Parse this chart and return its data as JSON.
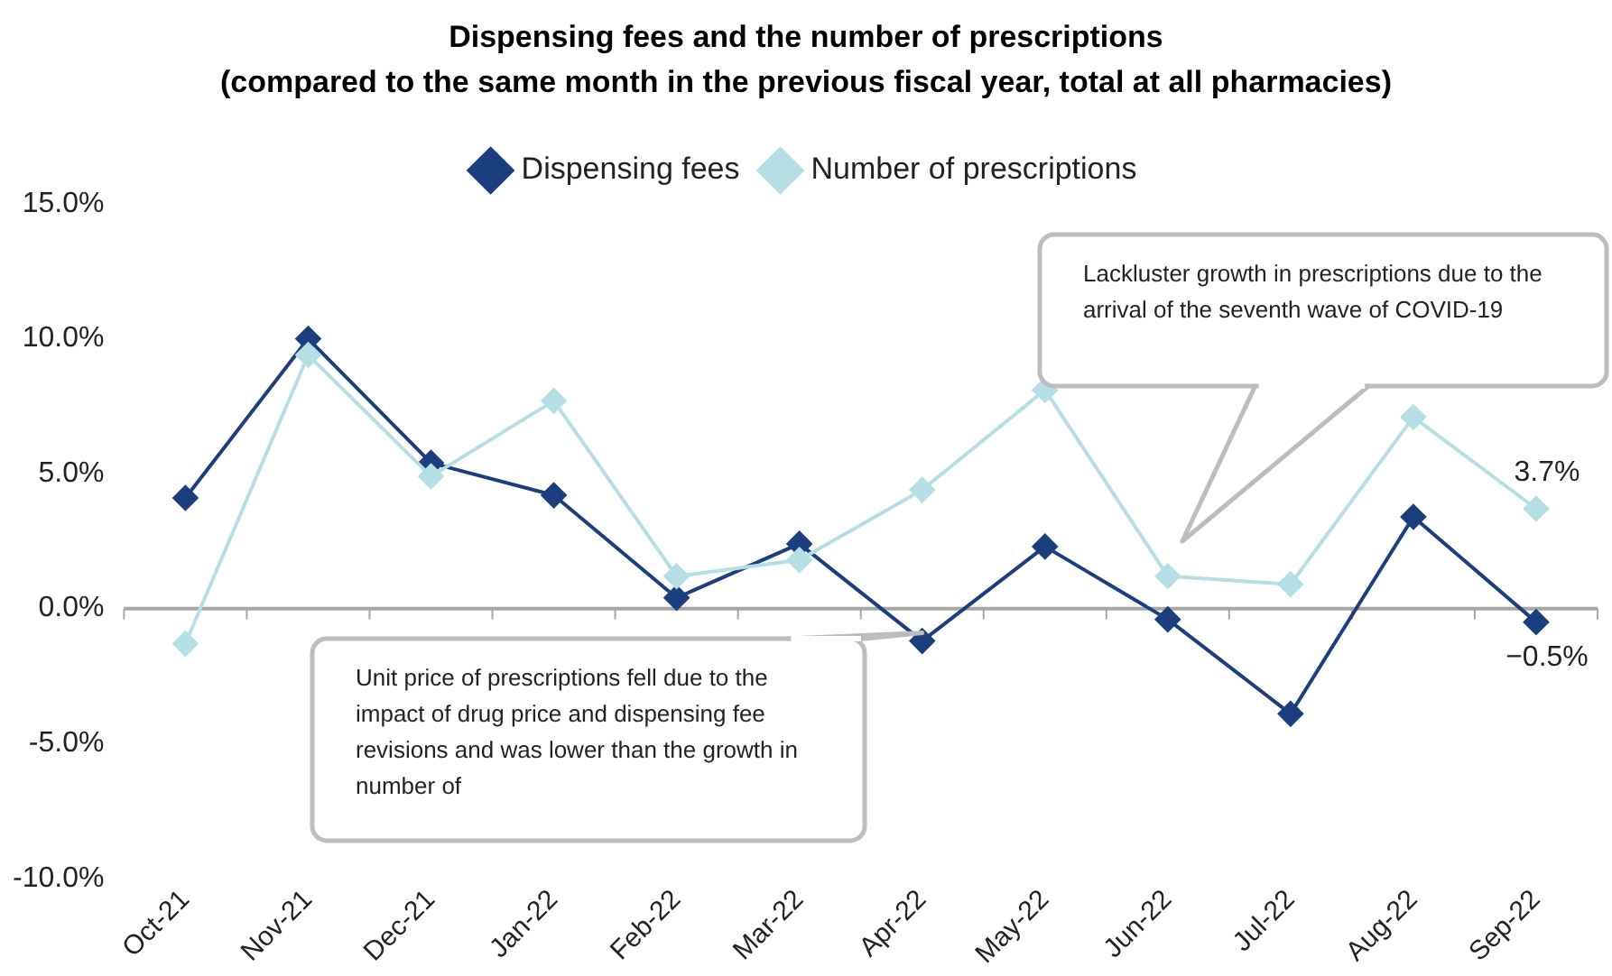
{
  "chart_data": {
    "type": "line",
    "title": "Dispensing fees and the number of prescriptions\n(compared to the same month in the previous fiscal year, total at all pharmacies)",
    "categories": [
      "Oct-21",
      "Nov-21",
      "Dec-21",
      "Jan-22",
      "Feb-22",
      "Mar-22",
      "Apr-22",
      "May-22",
      "Jun-22",
      "Jul-22",
      "Aug-22",
      "Sep-22"
    ],
    "series": [
      {
        "name": "Dispensing fees",
        "color": "#1b3f7e",
        "values": [
          4.1,
          10.0,
          5.4,
          4.2,
          0.4,
          2.4,
          -1.2,
          2.3,
          -0.4,
          -3.9,
          3.4,
          -0.5
        ],
        "value_labels": [
          null,
          null,
          null,
          null,
          null,
          null,
          null,
          null,
          null,
          null,
          null,
          "−0.5%"
        ]
      },
      {
        "name": "Number of prescriptions",
        "color": "#b4dfe5",
        "values": [
          -1.3,
          9.4,
          4.9,
          7.7,
          1.2,
          1.8,
          4.4,
          8.1,
          1.2,
          0.9,
          7.1,
          3.7
        ],
        "value_labels": [
          null,
          null,
          null,
          null,
          null,
          null,
          null,
          null,
          null,
          null,
          null,
          "3.7%"
        ]
      }
    ],
    "ylim": [
      -10,
      15
    ],
    "yticks": [
      {
        "value": -10,
        "label": "-10.0%"
      },
      {
        "value": -5,
        "label": "-5.0%"
      },
      {
        "value": 0,
        "label": "0.0%"
      },
      {
        "value": 5,
        "label": "5.0%"
      },
      {
        "value": 10,
        "label": "10.0%"
      },
      {
        "value": 15,
        "label": "15.0%"
      }
    ],
    "ref_lines": [
      {
        "axis": "y",
        "value": 0,
        "color": "#a6a6a6"
      }
    ],
    "grid": false,
    "legend": "top",
    "marker": "diamond",
    "line_style": "solid",
    "annotations": [
      "Lackluster growth in prescriptions due to the arrival of the seventh wave of COVID-19",
      {
        "text": "Unit price of prescriptions fell due to the impact of drug price and dispensing fee revisions and was lower than the growth in number of",
        "x": "Apr-22",
        "y": -0.9
      }
    ]
  }
}
